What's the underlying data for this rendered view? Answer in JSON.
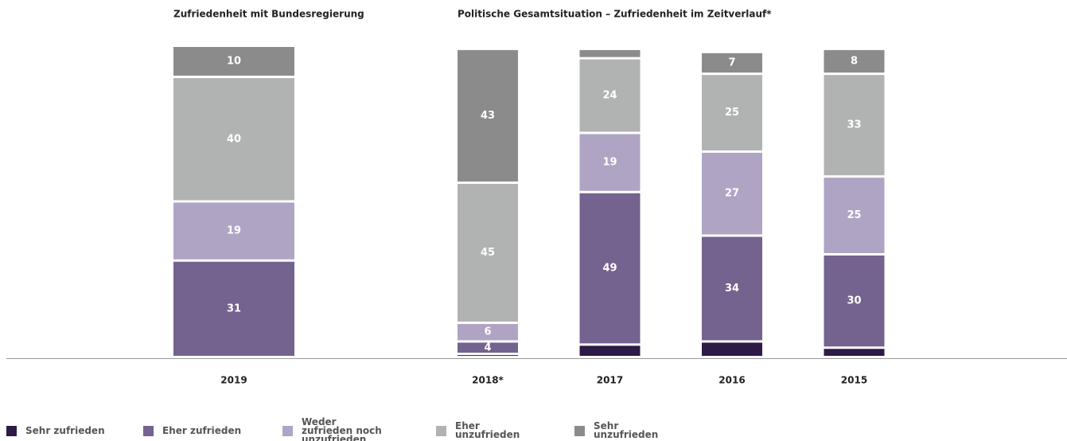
{
  "chart_data": [
    {
      "type": "stacked_bar",
      "title": "Zufriedenheit mit Bundesregierung",
      "categories": [
        "2019"
      ],
      "ylim": [
        0,
        100
      ],
      "series": [
        {
          "name": "Sehr zufrieden",
          "color": "#2e1a47",
          "values": [
            0
          ],
          "value_labels": [
            null
          ]
        },
        {
          "name": "Eher zufrieden",
          "color": "#74628f",
          "values": [
            31
          ],
          "value_labels": [
            "31"
          ]
        },
        {
          "name": "Weder zufrieden noch unzufrieden",
          "color": "#b0a4c4",
          "values": [
            19
          ],
          "value_labels": [
            "19"
          ]
        },
        {
          "name": "Eher unzufrieden",
          "color": "#b1b3b3",
          "values": [
            40
          ],
          "value_labels": [
            "40"
          ]
        },
        {
          "name": "Sehr unzufrieden",
          "color": "#8a8b8a",
          "values": [
            10
          ],
          "value_labels": [
            "10"
          ]
        }
      ]
    },
    {
      "type": "stacked_bar",
      "title": "Politische Gesamtsituation – Zufriedenheit im Zeitverlauf*",
      "categories": [
        "2018*",
        "2017",
        "2016",
        "2015"
      ],
      "ylim": [
        0,
        100
      ],
      "series": [
        {
          "name": "Sehr zufrieden",
          "color": "#2e1a47",
          "values": [
            1,
            4,
            5,
            3
          ],
          "value_labels": [
            null,
            null,
            null,
            null
          ]
        },
        {
          "name": "Eher zufrieden",
          "color": "#74628f",
          "values": [
            4,
            49,
            34,
            30
          ],
          "value_labels": [
            "4",
            "49",
            "34",
            "30"
          ]
        },
        {
          "name": "Weder zufrieden noch unzufrieden",
          "color": "#b0a4c4",
          "values": [
            6,
            19,
            27,
            25
          ],
          "value_labels": [
            "6",
            "19",
            "27",
            "25"
          ]
        },
        {
          "name": "Eher unzufrieden",
          "color": "#b1b3b3",
          "values": [
            45,
            24,
            25,
            33
          ],
          "value_labels": [
            "45",
            "24",
            "25",
            "33"
          ]
        },
        {
          "name": "Sehr unzufrieden",
          "color": "#8a8b8a",
          "values": [
            43,
            3,
            7,
            8
          ],
          "value_labels": [
            "43",
            null,
            "7",
            "8"
          ]
        }
      ]
    }
  ]
}
